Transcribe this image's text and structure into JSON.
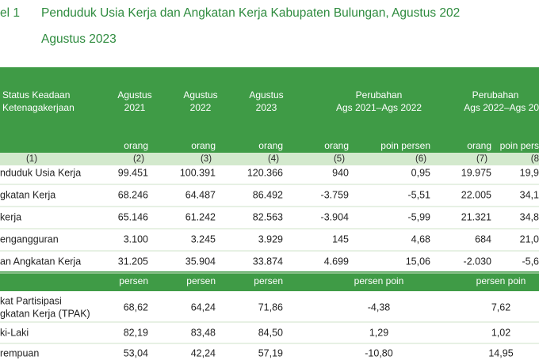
{
  "header": {
    "table_label": "el 1",
    "title_line1": "Penduduk Usia Kerja dan Angkatan Kerja Kabupaten Bulungan, Agustus 202",
    "title_line2": "Agustus 2023"
  },
  "table": {
    "columns": [
      [
        "Status Keadaan",
        "Ketenagakerjaan"
      ],
      [
        "Agustus",
        "2021"
      ],
      [
        "Agustus",
        "2022"
      ],
      [
        "Agustus",
        "2023"
      ],
      [
        "Perubahan",
        "Ags 2021–Ags 2022"
      ],
      [
        "Perubahan",
        "Ags 2022–Ags 20"
      ]
    ],
    "units": [
      "orang",
      "orang",
      "orang",
      "orang",
      "poin persen",
      "orang",
      "poin pers"
    ],
    "numbers": [
      "(1)",
      "(2)",
      "(3)",
      "(4)",
      "(5)",
      "(6)",
      "(7)",
      "(8"
    ],
    "rows": [
      [
        "nduduk Usia Kerja",
        "99.451",
        "100.391",
        "120.366",
        "940",
        "0,95",
        "19.975",
        "19,9"
      ],
      [
        "gkatan Kerja",
        "68.246",
        "64.487",
        "86.492",
        "-3.759",
        "-5,51",
        "22.005",
        "34,1"
      ],
      [
        "kerja",
        "65.146",
        "61.242",
        "82.563",
        "-3.904",
        "-5,99",
        "21.321",
        "34,8"
      ],
      [
        "engangguran",
        "3.100",
        "3.245",
        "3.929",
        "145",
        "4,68",
        "684",
        "21,0"
      ],
      [
        "an Angkatan Kerja",
        "31.205",
        "35.904",
        "33.874",
        "4.699",
        "15,06",
        "-2.030",
        "-5,6"
      ]
    ],
    "percent_units": [
      "persen",
      "persen",
      "persen",
      "persen poin",
      "persen poin"
    ],
    "percent_rows": [
      [
        [
          "kat Partisipasi",
          "gkatan Kerja (TPAK)"
        ],
        "68,62",
        "64,24",
        "71,86",
        "-4,38",
        "7,62"
      ],
      [
        [
          "ki-Laki"
        ],
        "82,19",
        "83,48",
        "84,50",
        "1,29",
        "1,02"
      ],
      [
        [
          "rempuan"
        ],
        "53,04",
        "42,24",
        "57,19",
        "-10,80",
        "14,95"
      ]
    ]
  }
}
